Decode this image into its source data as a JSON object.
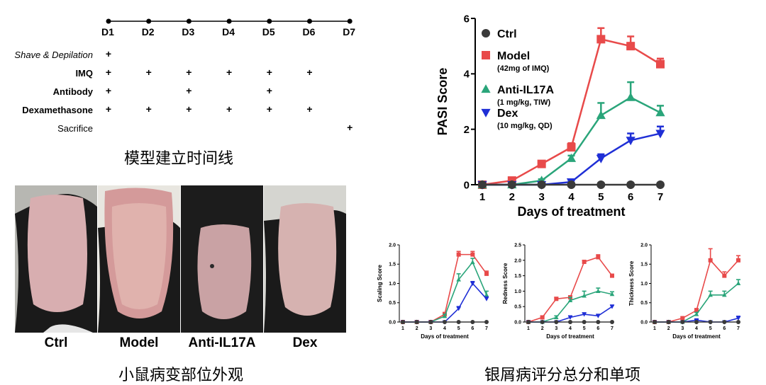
{
  "timeline": {
    "days": [
      "D1",
      "D2",
      "D3",
      "D4",
      "D5",
      "D6",
      "D7"
    ],
    "rows": [
      {
        "label": "Shave & Depilation",
        "style": "italic",
        "marks": [
          1
        ]
      },
      {
        "label": "IMQ",
        "style": "bold",
        "marks": [
          1,
          2,
          3,
          4,
          5,
          6
        ]
      },
      {
        "label": "Antibody",
        "style": "bold",
        "marks": [
          1,
          3,
          5
        ]
      },
      {
        "label": "Dexamethasone",
        "style": "bold",
        "marks": [
          1,
          2,
          3,
          4,
          5,
          6
        ]
      },
      {
        "label": "Sacrifice",
        "style": "normal",
        "marks": [
          7
        ]
      }
    ],
    "mark_symbol": "+",
    "caption": "模型建立时间线"
  },
  "photos": {
    "labels": [
      "Ctrl",
      "Model",
      "Anti-IL17A",
      "Dex"
    ],
    "caption": "小鼠病变部位外观"
  },
  "bottom_right_caption": "银屑病评分总分和单项",
  "colors": {
    "Ctrl": "#3a3a3a",
    "Model": "#e84a4a",
    "Anti-IL17A": "#2aa57a",
    "Dex": "#1f2fd6"
  },
  "chart_data": [
    {
      "type": "line",
      "id": "pasi",
      "ylabel": "PASI Score",
      "xlabel": "Days of treatment",
      "x": [
        1,
        2,
        3,
        4,
        5,
        6,
        7
      ],
      "ylim": [
        0,
        6
      ],
      "yticks": [
        0,
        2,
        4,
        6
      ],
      "legend": [
        {
          "name": "Ctrl",
          "sub": ""
        },
        {
          "name": "Model",
          "sub": "(42mg of IMQ)"
        },
        {
          "name": "Anti-IL17A",
          "sub": "(1 mg/kg, TIW)"
        },
        {
          "name": "Dex",
          "sub": "(10 mg/kg, QD)"
        }
      ],
      "series": [
        {
          "name": "Ctrl",
          "marker": "circle",
          "values": [
            0,
            0,
            0,
            0,
            0,
            0,
            0
          ],
          "err": [
            0,
            0,
            0,
            0,
            0,
            0,
            0
          ]
        },
        {
          "name": "Model",
          "marker": "square",
          "values": [
            0,
            0.15,
            0.75,
            1.35,
            5.25,
            5.0,
            4.35
          ],
          "err": [
            0,
            0.05,
            0.08,
            0.15,
            0.4,
            0.35,
            0.2
          ]
        },
        {
          "name": "Anti-IL17A",
          "marker": "triangle",
          "values": [
            0,
            0,
            0.15,
            0.95,
            2.5,
            3.15,
            2.6
          ],
          "err": [
            0,
            0,
            0.05,
            0.1,
            0.45,
            0.55,
            0.25
          ]
        },
        {
          "name": "Dex",
          "marker": "triangle-down",
          "values": [
            0,
            0,
            0,
            0.1,
            0.95,
            1.6,
            1.85
          ],
          "err": [
            0,
            0,
            0,
            0.05,
            0.15,
            0.25,
            0.25
          ]
        }
      ]
    },
    {
      "type": "line",
      "id": "scaling",
      "ylabel": "Scaling Score",
      "xlabel": "Days of treatment",
      "x": [
        1,
        2,
        3,
        4,
        5,
        6,
        7
      ],
      "ylim": [
        0,
        2
      ],
      "yticks": [
        "0.0",
        "0.5",
        "1.0",
        "1.5",
        "2.0"
      ],
      "series": [
        {
          "name": "Ctrl",
          "marker": "circle",
          "values": [
            0,
            0,
            0,
            0,
            0,
            0,
            0
          ],
          "err": [
            0,
            0,
            0,
            0,
            0,
            0,
            0
          ]
        },
        {
          "name": "Model",
          "marker": "square",
          "values": [
            0,
            0,
            0,
            0.2,
            1.75,
            1.75,
            1.25
          ],
          "err": [
            0,
            0,
            0,
            0.05,
            0.08,
            0.08,
            0.07
          ]
        },
        {
          "name": "Anti-IL17A",
          "marker": "triangle",
          "values": [
            0,
            0,
            0,
            0.15,
            1.1,
            1.55,
            0.7
          ],
          "err": [
            0,
            0,
            0,
            0.05,
            0.15,
            0.1,
            0.1
          ]
        },
        {
          "name": "Dex",
          "marker": "triangle-down",
          "values": [
            0,
            0,
            0,
            0,
            0.35,
            1.0,
            0.6
          ],
          "err": [
            0,
            0,
            0,
            0,
            0.05,
            0.05,
            0.05
          ]
        }
      ]
    },
    {
      "type": "line",
      "id": "redness",
      "ylabel": "Redness Score",
      "xlabel": "Days of treatment",
      "x": [
        1,
        2,
        3,
        4,
        5,
        6,
        7
      ],
      "ylim": [
        0,
        2.5
      ],
      "yticks": [
        "0.0",
        "0.5",
        "1.0",
        "1.5",
        "2.0",
        "2.5"
      ],
      "series": [
        {
          "name": "Ctrl",
          "marker": "circle",
          "values": [
            0,
            0,
            0,
            0,
            0,
            0,
            0
          ],
          "err": [
            0,
            0,
            0,
            0,
            0,
            0,
            0
          ]
        },
        {
          "name": "Model",
          "marker": "square",
          "values": [
            0,
            0.15,
            0.75,
            0.8,
            1.95,
            2.1,
            1.5
          ],
          "err": [
            0,
            0.05,
            0.05,
            0.05,
            0.05,
            0.08,
            0.05
          ]
        },
        {
          "name": "Anti-IL17A",
          "marker": "triangle",
          "values": [
            0,
            0,
            0.15,
            0.7,
            0.85,
            1.0,
            0.9
          ],
          "err": [
            0,
            0,
            0.05,
            0.1,
            0.15,
            0.1,
            0.08
          ]
        },
        {
          "name": "Dex",
          "marker": "triangle-down",
          "values": [
            0,
            0,
            0,
            0.15,
            0.25,
            0.2,
            0.5
          ],
          "err": [
            0,
            0,
            0,
            0.05,
            0.05,
            0.05,
            0.05
          ]
        }
      ]
    },
    {
      "type": "line",
      "id": "thickness",
      "ylabel": "Thickness Score",
      "xlabel": "Days of treatment",
      "x": [
        1,
        2,
        3,
        4,
        5,
        6,
        7
      ],
      "ylim": [
        0,
        2
      ],
      "yticks": [
        "0.0",
        "0.5",
        "1.0",
        "1.5",
        "2.0"
      ],
      "series": [
        {
          "name": "Ctrl",
          "marker": "circle",
          "values": [
            0,
            0,
            0,
            0,
            0,
            0,
            0
          ],
          "err": [
            0,
            0,
            0,
            0,
            0,
            0,
            0
          ]
        },
        {
          "name": "Model",
          "marker": "square",
          "values": [
            0,
            0,
            0.1,
            0.3,
            1.6,
            1.2,
            1.6
          ],
          "err": [
            0,
            0,
            0.03,
            0.05,
            0.3,
            0.1,
            0.12
          ]
        },
        {
          "name": "Anti-IL17A",
          "marker": "triangle",
          "values": [
            0,
            0,
            0,
            0.2,
            0.7,
            0.7,
            1.0
          ],
          "err": [
            0,
            0,
            0,
            0.05,
            0.1,
            0.1,
            0.1
          ]
        },
        {
          "name": "Dex",
          "marker": "triangle-down",
          "values": [
            0,
            0,
            0,
            0.05,
            0,
            0,
            0.1
          ],
          "err": [
            0,
            0,
            0,
            0.02,
            0,
            0,
            0.05
          ]
        }
      ]
    }
  ]
}
